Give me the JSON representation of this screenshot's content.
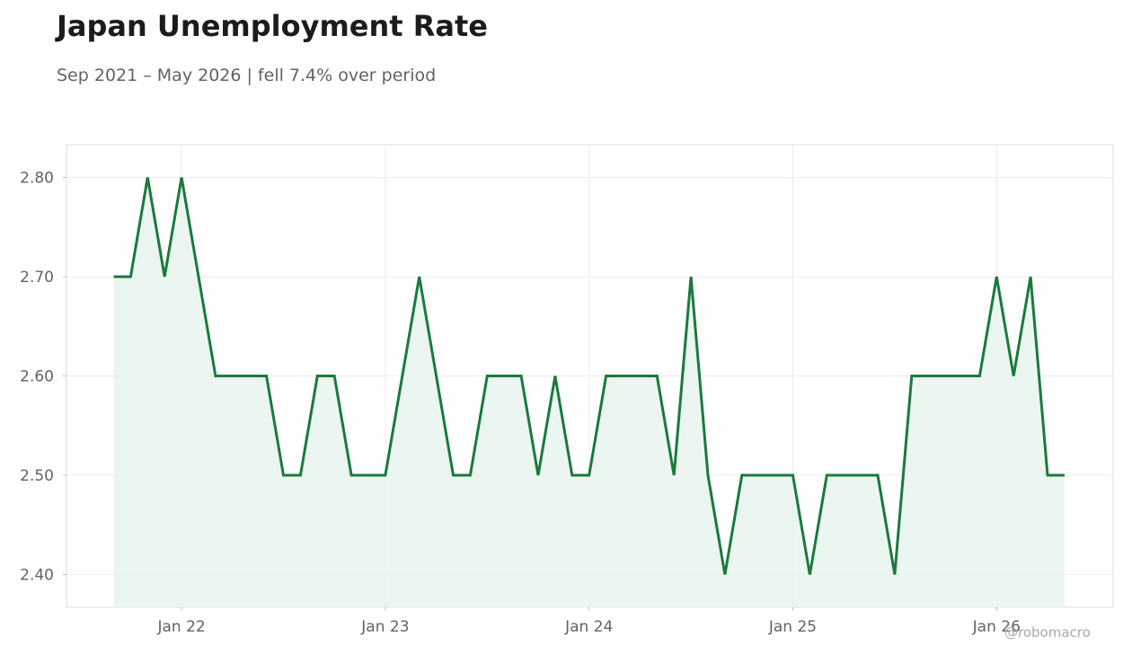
{
  "header": {
    "title": "Japan Unemployment Rate",
    "subtitle": "Sep 2021 – May 2026 | fell 7.4% over period"
  },
  "watermark": "@robomacro",
  "colors": {
    "line": "#1a7a3c",
    "fill": "#e9f4ed",
    "grid": "#ececec",
    "frame": "#dedede"
  },
  "chart_data": {
    "type": "area",
    "x_start": "2021-09",
    "x_end": "2026-05",
    "ylim": [
      2.367,
      2.833
    ],
    "yticks": [
      {
        "value": 2.8,
        "label": "2.80"
      },
      {
        "value": 2.7,
        "label": "2.70"
      },
      {
        "value": 2.6,
        "label": "2.60"
      },
      {
        "value": 2.5,
        "label": "2.50"
      },
      {
        "value": 2.4,
        "label": "2.40"
      }
    ],
    "xticks": [
      {
        "value": "2022-01",
        "label": "Jan 22"
      },
      {
        "value": "2023-01",
        "label": "Jan 23"
      },
      {
        "value": "2024-01",
        "label": "Jan 24"
      },
      {
        "value": "2025-01",
        "label": "Jan 25"
      },
      {
        "value": "2026-01",
        "label": "Jan 26"
      }
    ],
    "grid": true,
    "series": [
      {
        "values": [
          2.7,
          2.7,
          2.8,
          2.7,
          2.8,
          2.7,
          2.6,
          2.6,
          2.6,
          2.6,
          2.5,
          2.5,
          2.6,
          2.6,
          2.5,
          2.5,
          2.5,
          2.6,
          2.7,
          2.6,
          2.5,
          2.5,
          2.6,
          2.6,
          2.6,
          2.5,
          2.6,
          2.5,
          2.5,
          2.6,
          2.6,
          2.6,
          2.6,
          2.5,
          2.7,
          2.5,
          2.4,
          2.5,
          2.5,
          2.5,
          2.5,
          2.4,
          2.5,
          2.5,
          2.5,
          2.5,
          2.4,
          2.6,
          2.6,
          2.6,
          2.6,
          2.6,
          2.7,
          2.6,
          2.7,
          2.5,
          2.5
        ]
      }
    ]
  }
}
